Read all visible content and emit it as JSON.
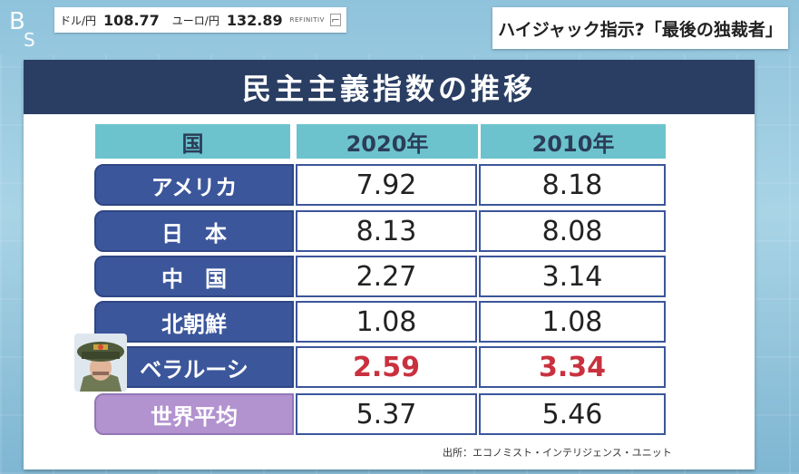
{
  "ticker": {
    "usd_label": "ドル/円",
    "usd_value": "108.77",
    "eur_label": "ユーロ/円",
    "eur_value": "132.89",
    "source": "REFINITIV"
  },
  "headline": "ハイジャック指示?「最後の独裁者」",
  "board": {
    "title": "民主主義指数の推移",
    "headers": [
      "国",
      "2020年",
      "2010年"
    ],
    "rows": [
      {
        "country": "アメリカ",
        "y2020": "7.92",
        "y2010": "8.18",
        "highlight": false
      },
      {
        "country": "日　本",
        "y2020": "8.13",
        "y2010": "8.08",
        "highlight": false
      },
      {
        "country": "中　国",
        "y2020": "2.27",
        "y2010": "3.14",
        "highlight": false
      },
      {
        "country": "北朝鮮",
        "y2020": "1.08",
        "y2010": "1.08",
        "highlight": false
      },
      {
        "country": "ベラルーシ",
        "y2020": "2.59",
        "y2010": "3.34",
        "highlight": true
      },
      {
        "country": "世界平均",
        "y2020": "5.37",
        "y2010": "5.46",
        "highlight": false
      }
    ],
    "source": "出所：エコノミスト・インテリジェンス・ユニット"
  },
  "colors": {
    "title_bar": "#2a3e63",
    "header_teal": "#6cc3cd",
    "row_label_blue": "#3c569b",
    "world_avg_purple": "#b292cf",
    "highlight_red": "#c9313e"
  },
  "icons": {
    "logo": "channel-logo-icon",
    "portrait": "portrait-icon"
  }
}
